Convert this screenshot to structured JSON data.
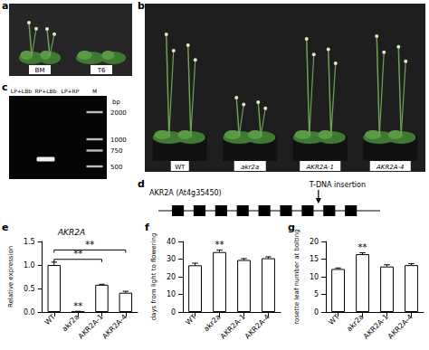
{
  "panels": {
    "a": {
      "letter": "a",
      "labels": [
        "BM",
        "T6"
      ]
    },
    "b": {
      "letter": "b",
      "labels": [
        "WT",
        "akr2a",
        "AKR2A-1",
        "AKR2A-4"
      ]
    },
    "c": {
      "letter": "c",
      "lanes": [
        "LP+LBb",
        "RP+LBb",
        "LP+RP",
        "M"
      ],
      "unit": "bp",
      "ladder": [
        2000,
        1000,
        750,
        500
      ],
      "band": {
        "lane": "RP+LBb",
        "size": 600
      }
    },
    "d": {
      "letter": "d",
      "gene": "AKR2A (At4g35450)",
      "exons": 9,
      "insertion_after_exon": 7,
      "annotation": "T-DNA insertion"
    }
  },
  "chart_data": [
    {
      "letter": "e",
      "type": "bar",
      "title": "AKR2A",
      "categories": [
        "WT",
        "akr2a",
        "AKR2A-1",
        "AKR2A-4"
      ],
      "values": [
        1.0,
        0.01,
        0.58,
        0.41
      ],
      "errors": [
        0.06,
        0.005,
        0.01,
        0.03
      ],
      "ylabel": "Relative expression",
      "color": "#ffffff",
      "ylim": [
        0,
        1.5
      ],
      "yticks": [
        {
          "value": 0,
          "label": "0.0"
        },
        0.5,
        {
          "value": 1,
          "label": "1.0"
        },
        1.5
      ],
      "annotations": [
        {
          "category": "akr2a",
          "text": "**"
        }
      ],
      "comparisons": [
        {
          "from": "WT",
          "to": "AKR2A-1",
          "y": 1.12,
          "text": "**"
        },
        {
          "from": "WT",
          "to": "AKR2A-4",
          "y": 1.32,
          "text": "**"
        }
      ]
    },
    {
      "letter": "f",
      "type": "bar",
      "categories": [
        "WT",
        "akr2a",
        "AKR2A-1",
        "AKR2A-4"
      ],
      "values": [
        26.5,
        34,
        29.5,
        30.5
      ],
      "errors": [
        1.2,
        1.2,
        0.8,
        0.8
      ],
      "ylabel": "days from light to flowering",
      "color": "#ffffff",
      "ylim": [
        0,
        40
      ],
      "yticks": [
        0,
        10,
        20,
        30,
        40
      ],
      "annotations": [
        {
          "category": "akr2a",
          "text": "**"
        }
      ]
    },
    {
      "letter": "g",
      "type": "bar",
      "categories": [
        "WT",
        "akr2a",
        "AKR2A-1",
        "AKR2A-4"
      ],
      "values": [
        12.2,
        16.4,
        12.9,
        13.3
      ],
      "errors": [
        0.3,
        0.4,
        0.5,
        0.4
      ],
      "ylabel": "rosette leaf number at bolting",
      "color": "#ffffff",
      "ylim": [
        0,
        20
      ],
      "yticks": [
        0,
        5,
        10,
        15,
        20
      ],
      "annotations": [
        {
          "category": "akr2a",
          "text": "**"
        }
      ]
    }
  ]
}
